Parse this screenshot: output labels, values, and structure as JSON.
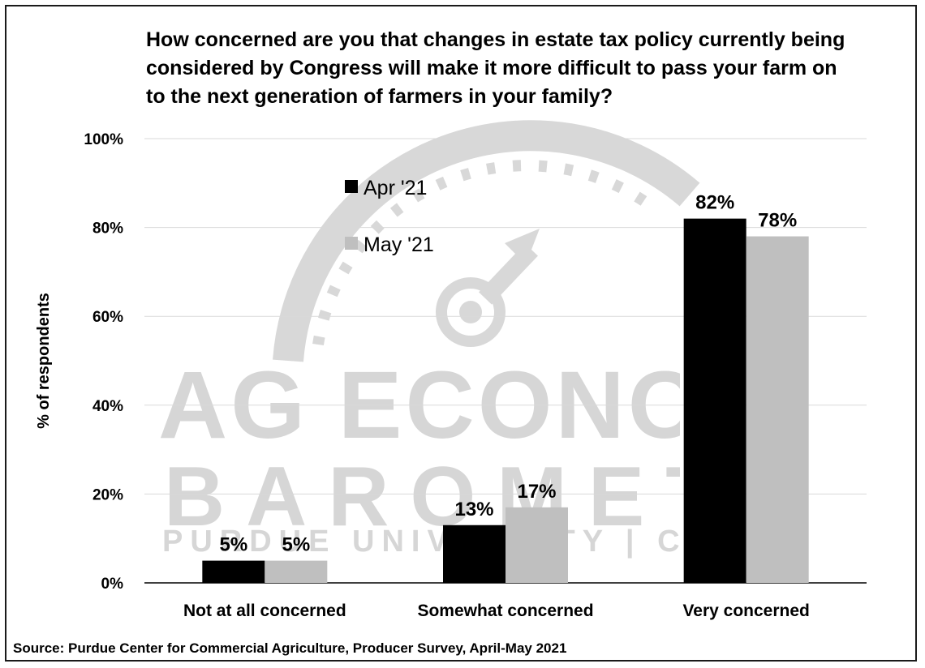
{
  "chart_data": {
    "type": "bar",
    "title_lines": [
      "How concerned are you that changes in estate tax policy currently being",
      "considered by Congress will make it more difficult to pass your farm on",
      "to the next generation of farmers in your family?"
    ],
    "ylabel": "% of respondents",
    "xlabel": "",
    "ylim": [
      0,
      100
    ],
    "yticks": [
      "0%",
      "20%",
      "40%",
      "60%",
      "80%",
      "100%"
    ],
    "ytick_values": [
      0,
      20,
      40,
      60,
      80,
      100
    ],
    "grid": true,
    "legend_position": "top-left",
    "categories": [
      "Not at all concerned",
      "Somewhat concerned",
      "Very concerned"
    ],
    "series": [
      {
        "name": "Apr '21",
        "color": "#000000",
        "values": [
          5,
          13,
          82
        ],
        "labels": [
          "5%",
          "13%",
          "82%"
        ]
      },
      {
        "name": "May '21",
        "color": "#bfbfbf",
        "values": [
          5,
          17,
          78
        ],
        "labels": [
          "5%",
          "17%",
          "78%"
        ]
      }
    ],
    "source": "Source: Purdue Center for Commercial Agriculture, Producer Survey, April-May 2021"
  },
  "watermark": {
    "line1": "AG ECONOMY",
    "line2": "BAROMETER",
    "line3": "PURDUE UNIVERSITY | CME GROUP",
    "color": "#cfcfcf"
  }
}
